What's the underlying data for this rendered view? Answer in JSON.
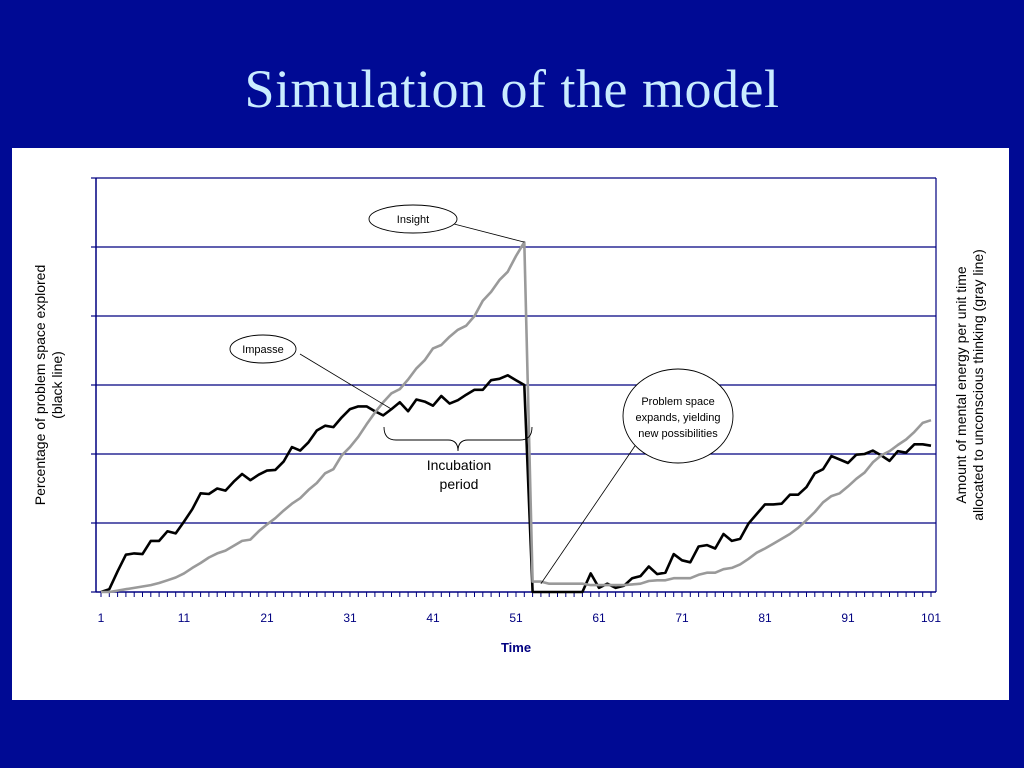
{
  "slide": {
    "title": "Simulation of  the model"
  },
  "chart_data": {
    "type": "line",
    "xlabel": "Time",
    "ylabel_left": [
      "Percentage of problem space explored",
      "(black line)"
    ],
    "ylabel_right": [
      "Amount of mental energy per unit time",
      "allocated to unconscious thinking (gray line)"
    ],
    "x_ticks": [
      "1",
      "11",
      "21",
      "31",
      "41",
      "51",
      "61",
      "71",
      "81",
      "91",
      "101"
    ],
    "xlim": [
      1,
      101
    ],
    "ylim": [
      0,
      6
    ],
    "y_gridlines": [
      1,
      2,
      3,
      4,
      5,
      6
    ],
    "y_tick_labels": "none",
    "annotations": {
      "insight": "Insight",
      "impasse": "Impasse",
      "incubation": [
        "Incubation",
        "period"
      ],
      "expansion": [
        "Problem space",
        "expands, yielding",
        "new  possibilities"
      ]
    },
    "series": [
      {
        "key": "black",
        "color": "#000000",
        "x": [
          1,
          2,
          3,
          4,
          5,
          6,
          7,
          8,
          9,
          10,
          11,
          12,
          13,
          14,
          15,
          16,
          17,
          18,
          19,
          20,
          21,
          22,
          23,
          24,
          25,
          26,
          27,
          28,
          29,
          30,
          31,
          32,
          33,
          34,
          35,
          36,
          37,
          38,
          39,
          40,
          41,
          42,
          43,
          44,
          45,
          46,
          47,
          48,
          49,
          50,
          51,
          52,
          53,
          54,
          55,
          56,
          57,
          58,
          59,
          60,
          61,
          62,
          63,
          64,
          65,
          66,
          67,
          68,
          69,
          70,
          71,
          72,
          73,
          74,
          75,
          76,
          77,
          78,
          79,
          80,
          81,
          82,
          83,
          84,
          85,
          86,
          87,
          88,
          89,
          90,
          91,
          92,
          93,
          94,
          95,
          96,
          97,
          98,
          99,
          100,
          101
        ],
        "values": [
          0.0,
          0.04,
          0.3,
          0.54,
          0.56,
          0.55,
          0.74,
          0.74,
          0.88,
          0.85,
          1.02,
          1.2,
          1.43,
          1.42,
          1.5,
          1.47,
          1.6,
          1.71,
          1.62,
          1.7,
          1.76,
          1.77,
          1.89,
          2.1,
          2.05,
          2.17,
          2.34,
          2.41,
          2.39,
          2.53,
          2.65,
          2.69,
          2.69,
          2.62,
          2.56,
          2.65,
          2.75,
          2.62,
          2.79,
          2.76,
          2.7,
          2.84,
          2.73,
          2.78,
          2.86,
          2.93,
          2.93,
          3.07,
          3.09,
          3.14,
          3.07,
          3.0,
          0.0,
          0.0,
          0.0,
          0.0,
          0.0,
          0.0,
          0.0,
          0.27,
          0.06,
          0.12,
          0.06,
          0.09,
          0.2,
          0.23,
          0.37,
          0.26,
          0.28,
          0.55,
          0.46,
          0.43,
          0.66,
          0.68,
          0.63,
          0.84,
          0.74,
          0.77,
          0.99,
          1.13,
          1.27,
          1.27,
          1.28,
          1.41,
          1.41,
          1.52,
          1.72,
          1.78,
          1.97,
          1.92,
          1.87,
          1.99,
          2.0,
          2.05,
          1.98,
          1.9,
          2.04,
          2.02,
          2.14,
          2.14,
          2.12
        ]
      },
      {
        "key": "gray",
        "color": "#9a9a9a",
        "x": [
          1,
          2,
          3,
          4,
          5,
          6,
          7,
          8,
          9,
          10,
          11,
          12,
          13,
          14,
          15,
          16,
          17,
          18,
          19,
          20,
          21,
          22,
          23,
          24,
          25,
          26,
          27,
          28,
          29,
          30,
          31,
          32,
          33,
          34,
          35,
          36,
          37,
          38,
          39,
          40,
          41,
          42,
          43,
          44,
          45,
          46,
          47,
          48,
          49,
          50,
          51,
          52,
          53,
          54,
          55,
          56,
          57,
          58,
          59,
          60,
          61,
          62,
          63,
          64,
          65,
          66,
          67,
          68,
          69,
          70,
          71,
          72,
          73,
          74,
          75,
          76,
          77,
          78,
          79,
          80,
          81,
          82,
          83,
          84,
          85,
          86,
          87,
          88,
          89,
          90,
          91,
          92,
          93,
          94,
          95,
          96,
          97,
          98,
          99,
          100,
          101
        ],
        "values": [
          0.0,
          0.0,
          0.02,
          0.04,
          0.06,
          0.08,
          0.1,
          0.13,
          0.17,
          0.21,
          0.27,
          0.35,
          0.42,
          0.5,
          0.56,
          0.6,
          0.67,
          0.74,
          0.76,
          0.88,
          0.98,
          1.07,
          1.18,
          1.28,
          1.36,
          1.48,
          1.58,
          1.72,
          1.78,
          1.98,
          2.1,
          2.25,
          2.43,
          2.6,
          2.75,
          2.88,
          2.94,
          3.08,
          3.24,
          3.36,
          3.53,
          3.58,
          3.7,
          3.8,
          3.86,
          4.0,
          4.22,
          4.35,
          4.52,
          4.64,
          4.87,
          5.07,
          0.15,
          0.15,
          0.12,
          0.12,
          0.12,
          0.12,
          0.12,
          0.1,
          0.1,
          0.1,
          0.1,
          0.1,
          0.11,
          0.12,
          0.16,
          0.17,
          0.17,
          0.2,
          0.2,
          0.2,
          0.25,
          0.28,
          0.28,
          0.33,
          0.35,
          0.4,
          0.48,
          0.57,
          0.63,
          0.7,
          0.77,
          0.84,
          0.93,
          1.04,
          1.16,
          1.3,
          1.39,
          1.43,
          1.53,
          1.64,
          1.73,
          1.88,
          1.98,
          2.04,
          2.13,
          2.21,
          2.32,
          2.45,
          2.49
        ]
      }
    ]
  }
}
